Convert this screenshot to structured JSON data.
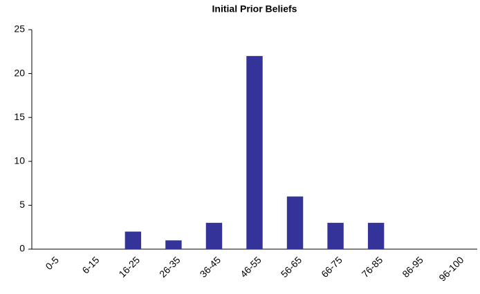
{
  "chart_data": {
    "type": "bar",
    "title": "Initial Prior Beliefs",
    "categories": [
      "0-5",
      "6-15",
      "16-25",
      "26-35",
      "36-45",
      "46-55",
      "56-65",
      "66-75",
      "76-85",
      "86-95",
      "96-100"
    ],
    "values": [
      0,
      0,
      2,
      1,
      3,
      22,
      6,
      3,
      3,
      0,
      0
    ],
    "color": "#333399",
    "ylim": [
      0,
      25
    ],
    "yticks": [
      0,
      5,
      10,
      15,
      20,
      25
    ],
    "grid": false
  }
}
